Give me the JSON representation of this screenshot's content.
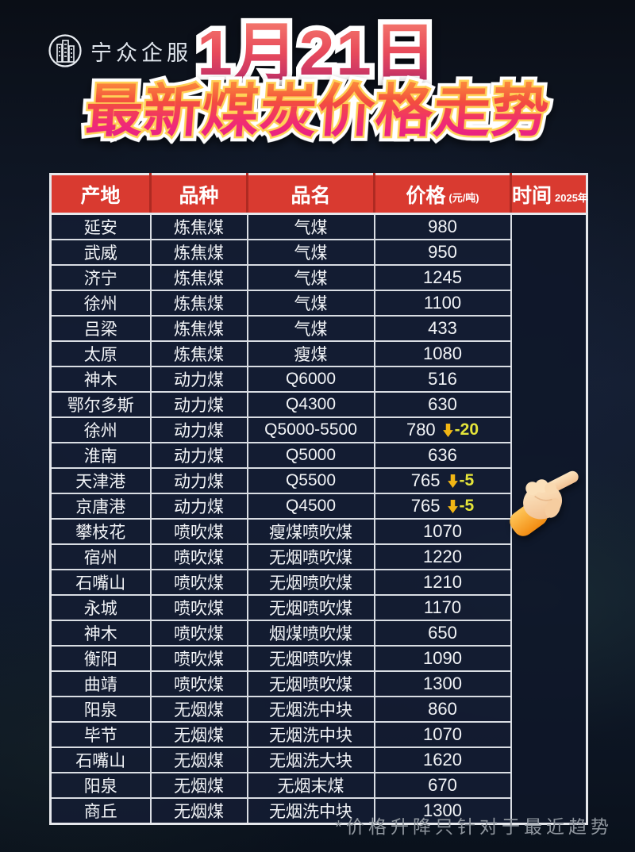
{
  "logo": {
    "text": "宁众企服",
    "icon": "building-circle-logo"
  },
  "header": {
    "date_title": "1月21日",
    "main_title": "最新煤炭价格走势"
  },
  "table": {
    "header": {
      "origin": "产地",
      "variety": "品种",
      "product": "品名",
      "price": "价格",
      "price_unit": "(元/吨)",
      "time": "时间",
      "time_year": "2025年"
    },
    "rows": [
      {
        "origin": "延安",
        "variety": "炼焦煤",
        "product": "气煤",
        "price": "980",
        "change": null
      },
      {
        "origin": "武威",
        "variety": "炼焦煤",
        "product": "气煤",
        "price": "950",
        "change": null
      },
      {
        "origin": "济宁",
        "variety": "炼焦煤",
        "product": "气煤",
        "price": "1245",
        "change": null
      },
      {
        "origin": "徐州",
        "variety": "炼焦煤",
        "product": "气煤",
        "price": "1100",
        "change": null
      },
      {
        "origin": "吕梁",
        "variety": "炼焦煤",
        "product": "气煤",
        "price": "433",
        "change": null
      },
      {
        "origin": "太原",
        "variety": "炼焦煤",
        "product": "瘦煤",
        "price": "1080",
        "change": null
      },
      {
        "origin": "神木",
        "variety": "动力煤",
        "product": "Q6000",
        "price": "516",
        "change": null
      },
      {
        "origin": "鄂尔多斯",
        "variety": "动力煤",
        "product": "Q4300",
        "price": "630",
        "change": null
      },
      {
        "origin": "徐州",
        "variety": "动力煤",
        "product": "Q5000-5500",
        "price": "780",
        "change": {
          "direction": "down",
          "value": "-20"
        }
      },
      {
        "origin": "淮南",
        "variety": "动力煤",
        "product": "Q5000",
        "price": "636",
        "change": null
      },
      {
        "origin": "天津港",
        "variety": "动力煤",
        "product": "Q5500",
        "price": "765",
        "change": {
          "direction": "down",
          "value": "-5"
        }
      },
      {
        "origin": "京唐港",
        "variety": "动力煤",
        "product": "Q4500",
        "price": "765",
        "change": {
          "direction": "down",
          "value": "-5"
        }
      },
      {
        "origin": "攀枝花",
        "variety": "喷吹煤",
        "product": "瘦煤喷吹煤",
        "price": "1070",
        "change": null
      },
      {
        "origin": "宿州",
        "variety": "喷吹煤",
        "product": "无烟喷吹煤",
        "price": "1220",
        "change": null
      },
      {
        "origin": "石嘴山",
        "variety": "喷吹煤",
        "product": "无烟喷吹煤",
        "price": "1210",
        "change": null
      },
      {
        "origin": "永城",
        "variety": "喷吹煤",
        "product": "无烟喷吹煤",
        "price": "1170",
        "change": null
      },
      {
        "origin": "神木",
        "variety": "喷吹煤",
        "product": "烟煤喷吹煤",
        "price": "650",
        "change": null
      },
      {
        "origin": "衡阳",
        "variety": "喷吹煤",
        "product": "无烟喷吹煤",
        "price": "1090",
        "change": null
      },
      {
        "origin": "曲靖",
        "variety": "喷吹煤",
        "product": "无烟喷吹煤",
        "price": "1300",
        "change": null
      },
      {
        "origin": "阳泉",
        "variety": "无烟煤",
        "product": "无烟洗中块",
        "price": "860",
        "change": null
      },
      {
        "origin": "毕节",
        "variety": "无烟煤",
        "product": "无烟洗中块",
        "price": "1070",
        "change": null
      },
      {
        "origin": "石嘴山",
        "variety": "无烟煤",
        "product": "无烟洗大块",
        "price": "1620",
        "change": null
      },
      {
        "origin": "阳泉",
        "variety": "无烟煤",
        "product": "无烟末煤",
        "price": "670",
        "change": null
      },
      {
        "origin": "商丘",
        "variety": "无烟煤",
        "product": "无烟洗中块",
        "price": "1300",
        "change": null
      }
    ]
  },
  "footer": {
    "note": "*价格升降只针对于最近趋势"
  },
  "icons": {
    "down_arrow": "down-arrow",
    "hand": "pointing-hand"
  },
  "colors": {
    "header_red": "#d93a30",
    "header_divider_red": "#ae2a22",
    "row_background": "#131c32",
    "table_border": "#d9dde3",
    "arrow_gold": "#f2b615",
    "change_yellow": "#e4e43a",
    "date_gradient_top": "#f4796d",
    "date_gradient_bottom": "#bb2a6b",
    "title_gradient_top": "#fb8a3c",
    "title_gradient_bottom": "#e41e8c",
    "footnote_grey": "#8e959d"
  }
}
